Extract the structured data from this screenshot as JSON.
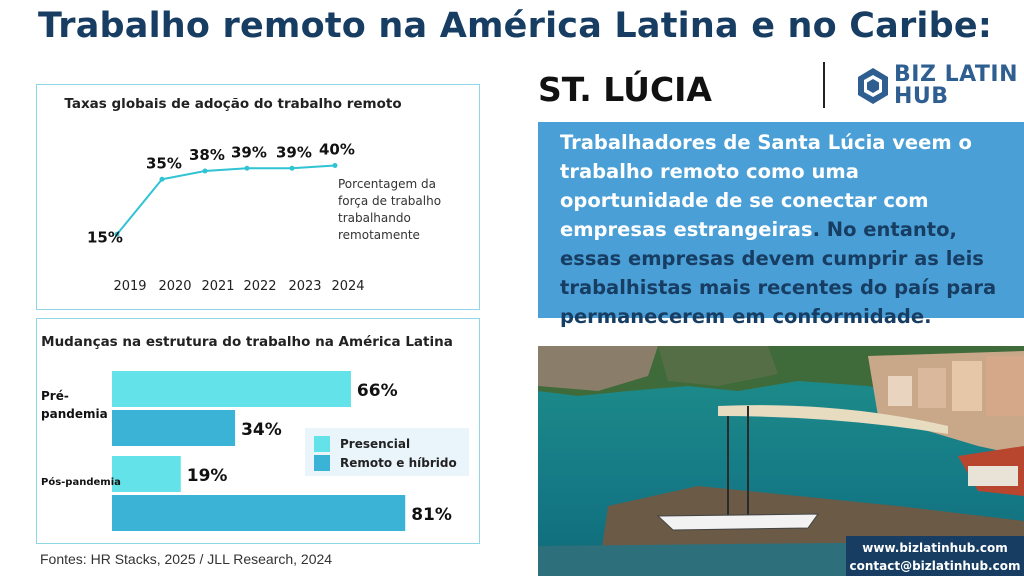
{
  "header": {
    "title": "Trabalho remoto na América Latina e no Caribe:",
    "country": "ST. LÚCIA",
    "logo_line1": "BIZ LATIN",
    "logo_line2": "HUB"
  },
  "info": {
    "part1": "Trabalhadores de Santa Lúcia veem o trabalho remoto como uma oportunidade de se conectar com empresas estrangeiras",
    "part2": ". No entanto, essas empresas devem cumprir as leis trabalhistas mais recentes do país para permanecerem em conformidade."
  },
  "contact": {
    "website": "www.bizlatinhub.com",
    "email": "contact@bizlatinhub.com"
  },
  "sources": "Fontes: HR Stacks, 2025 / JLL Research, 2024",
  "colors": {
    "title": "#173d63",
    "line": "#2fc3d4",
    "presencial": "#63e3e9",
    "remoto": "#3ab3d6",
    "info_bg": "#4a9fd6"
  },
  "chart_data": [
    {
      "type": "line",
      "title": "Taxas globais de adoção do trabalho remoto",
      "x": [
        "2019",
        "2020",
        "2021",
        "2022",
        "2023",
        "2024"
      ],
      "values": [
        15,
        35,
        38,
        39,
        39,
        40
      ],
      "data_labels": [
        "15%",
        "35%",
        "38%",
        "39%",
        "39%",
        "40%"
      ],
      "annotation": "Porcentagem da força de trabalho trabalhando remotamente",
      "ylim": [
        10,
        42
      ],
      "grid": false
    },
    {
      "type": "bar",
      "orientation": "horizontal",
      "title": "Mudanças na estrutura do trabalho na América Latina",
      "categories": [
        "Pré-pandemia",
        "Pós-pandemia"
      ],
      "series": [
        {
          "name": "Presencial",
          "values": [
            66,
            19
          ],
          "labels": [
            "66%",
            "19%"
          ]
        },
        {
          "name": "Remoto e híbrido",
          "values": [
            34,
            81
          ],
          "labels": [
            "34%",
            "81%"
          ]
        }
      ],
      "xlim": [
        0,
        100
      ],
      "legend": "right",
      "grid": false
    }
  ]
}
